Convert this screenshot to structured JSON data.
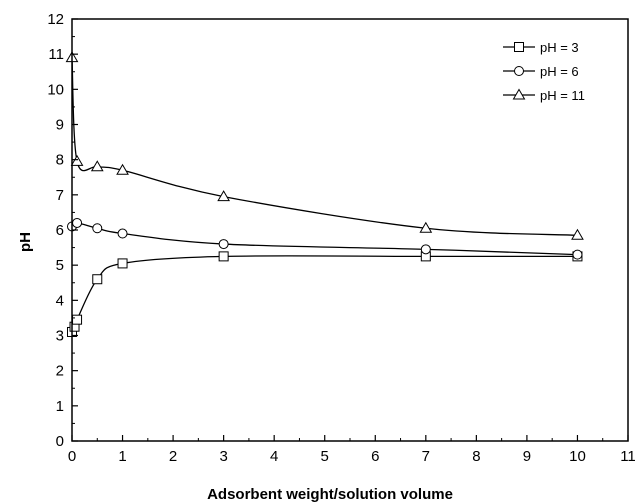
{
  "chart_data": {
    "type": "line",
    "title": "",
    "xlabel": "Adsorbent weight/solution volume",
    "ylabel": "pH",
    "xlim": [
      0,
      11
    ],
    "ylim": [
      0,
      12
    ],
    "xticks": [
      "0",
      "1",
      "2",
      "3",
      "4",
      "5",
      "6",
      "7",
      "8",
      "9",
      "10",
      "11"
    ],
    "yticks": [
      "0",
      "1",
      "2",
      "3",
      "4",
      "5",
      "6",
      "7",
      "8",
      "9",
      "10",
      "11",
      "12"
    ],
    "grid": false,
    "legend_position": "top-right",
    "series": [
      {
        "name": "pH = 3",
        "marker": "square",
        "x": [
          0,
          0.05,
          0.1,
          0.5,
          1,
          3,
          7,
          10
        ],
        "y": [
          3.1,
          3.25,
          3.45,
          4.6,
          5.05,
          5.25,
          5.25,
          5.25
        ]
      },
      {
        "name": "pH = 6",
        "marker": "circle",
        "x": [
          0,
          0.1,
          0.5,
          1,
          3,
          7,
          10
        ],
        "y": [
          6.1,
          6.2,
          6.05,
          5.9,
          5.6,
          5.45,
          5.3
        ]
      },
      {
        "name": "pH = 11",
        "marker": "triangle",
        "x": [
          0,
          0.1,
          0.5,
          1,
          3,
          7,
          10
        ],
        "y": [
          10.9,
          7.95,
          7.8,
          7.7,
          6.95,
          6.05,
          5.85
        ]
      }
    ]
  }
}
